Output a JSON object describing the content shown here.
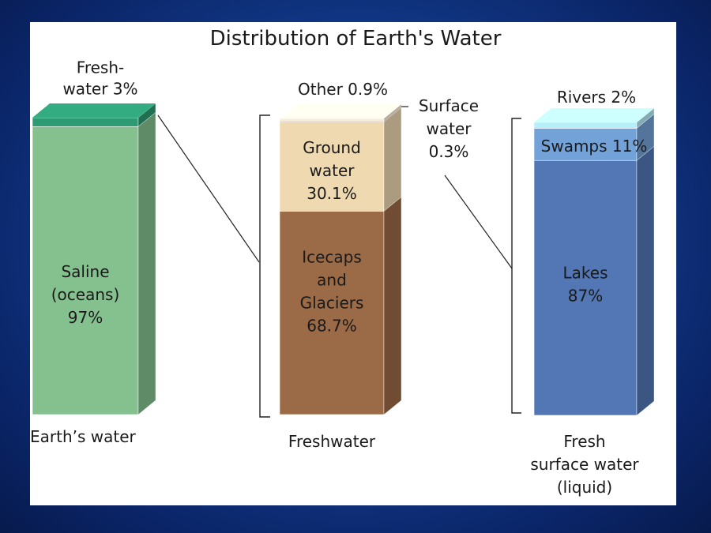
{
  "chart_data": {
    "type": "bar",
    "title": "Distribution of Earth's Water",
    "bars": [
      {
        "label": "Earth’s water",
        "segments": [
          {
            "name": "Saline (oceans)",
            "value": 97,
            "lines": [
              "Saline",
              "(oceans)",
              "97%"
            ],
            "color": "#85c18f"
          },
          {
            "name": "Fresh-water",
            "value": 3,
            "lines": [
              "Fresh-",
              "water 3%"
            ],
            "color": "#2e9a73"
          }
        ]
      },
      {
        "label": "Freshwater",
        "segments": [
          {
            "name": "Icecaps and Glaciers",
            "value": 68.7,
            "lines": [
              "Icecaps",
              "and",
              "Glaciers",
              "68.7%"
            ],
            "color": "#9b6a46"
          },
          {
            "name": "Ground water",
            "value": 30.1,
            "lines": [
              "Ground",
              "water",
              "30.1%"
            ],
            "color": "#efd9b0"
          },
          {
            "name": "Surface water",
            "value": 0.3,
            "lines": [
              "Surface",
              "water",
              "0.3%"
            ],
            "color": "#a86749"
          },
          {
            "name": "Other",
            "value": 0.9,
            "lines": [
              "Other 0.9%"
            ],
            "color": "#f6eed8"
          }
        ]
      },
      {
        "label_lines": [
          "Fresh",
          "surface water",
          "(liquid)"
        ],
        "segments": [
          {
            "name": "Lakes",
            "value": 87,
            "lines": [
              "Lakes",
              "87%"
            ],
            "color": "#5277b4"
          },
          {
            "name": "Swamps",
            "value": 11,
            "lines": [
              "Swamps 11%"
            ],
            "color": "#73a2d8"
          },
          {
            "name": "Rivers",
            "value": 2,
            "lines": [
              "Rivers 2%"
            ],
            "color": "#b7eefa"
          }
        ]
      }
    ]
  }
}
